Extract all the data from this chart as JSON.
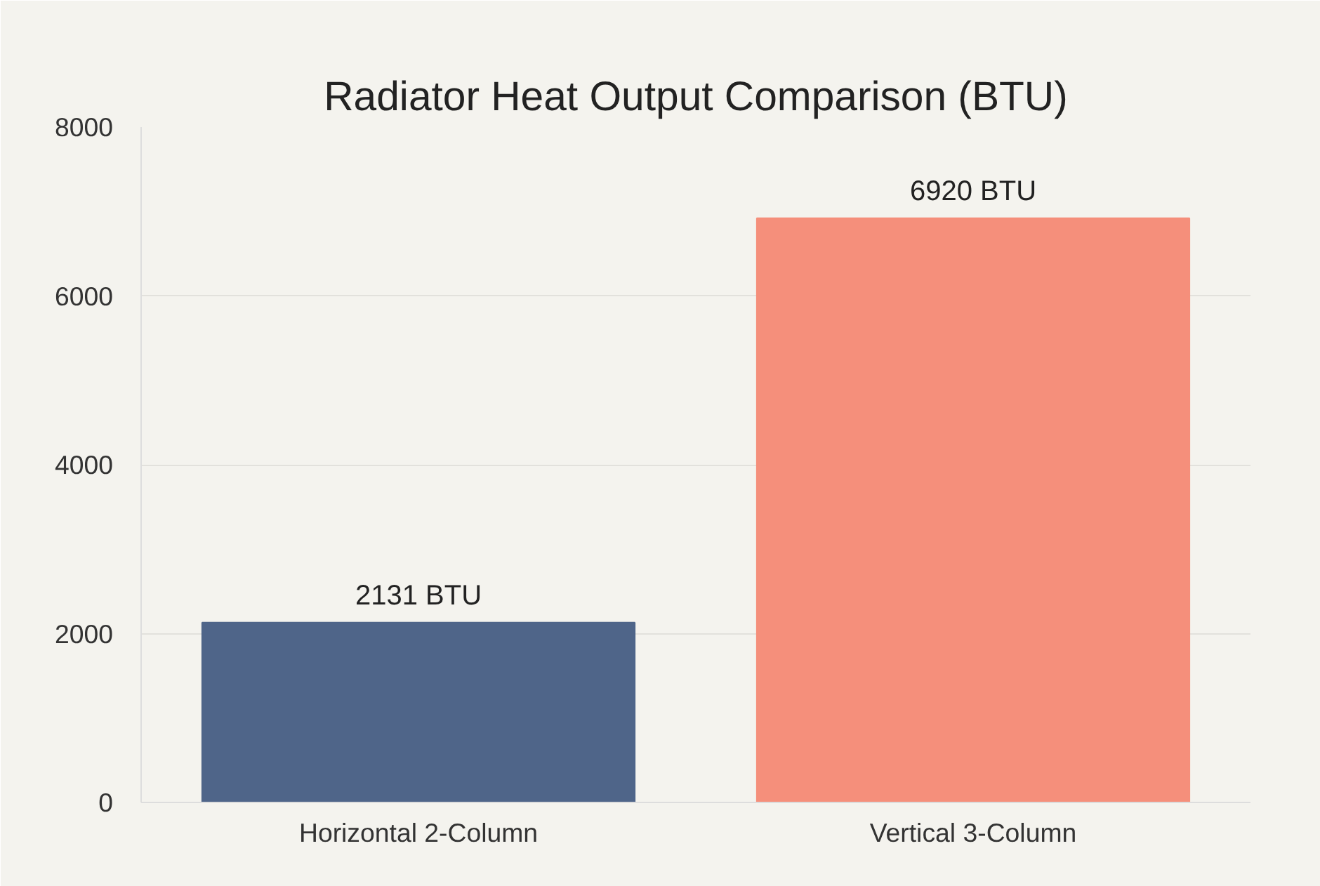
{
  "chart_data": {
    "type": "bar",
    "title": "Radiator Heat Output Comparison (BTU)",
    "categories": [
      "Horizontal 2-Column",
      "Vertical 3-Column"
    ],
    "values": [
      2131,
      6920
    ],
    "colors": [
      "#4f6589",
      "#f58f7b"
    ],
    "value_labels": [
      "2131 BTU",
      "6920 BTU"
    ],
    "ylim": [
      0,
      8000
    ],
    "yticks": [
      0,
      2000,
      4000,
      6000,
      8000
    ],
    "grid": "y"
  }
}
